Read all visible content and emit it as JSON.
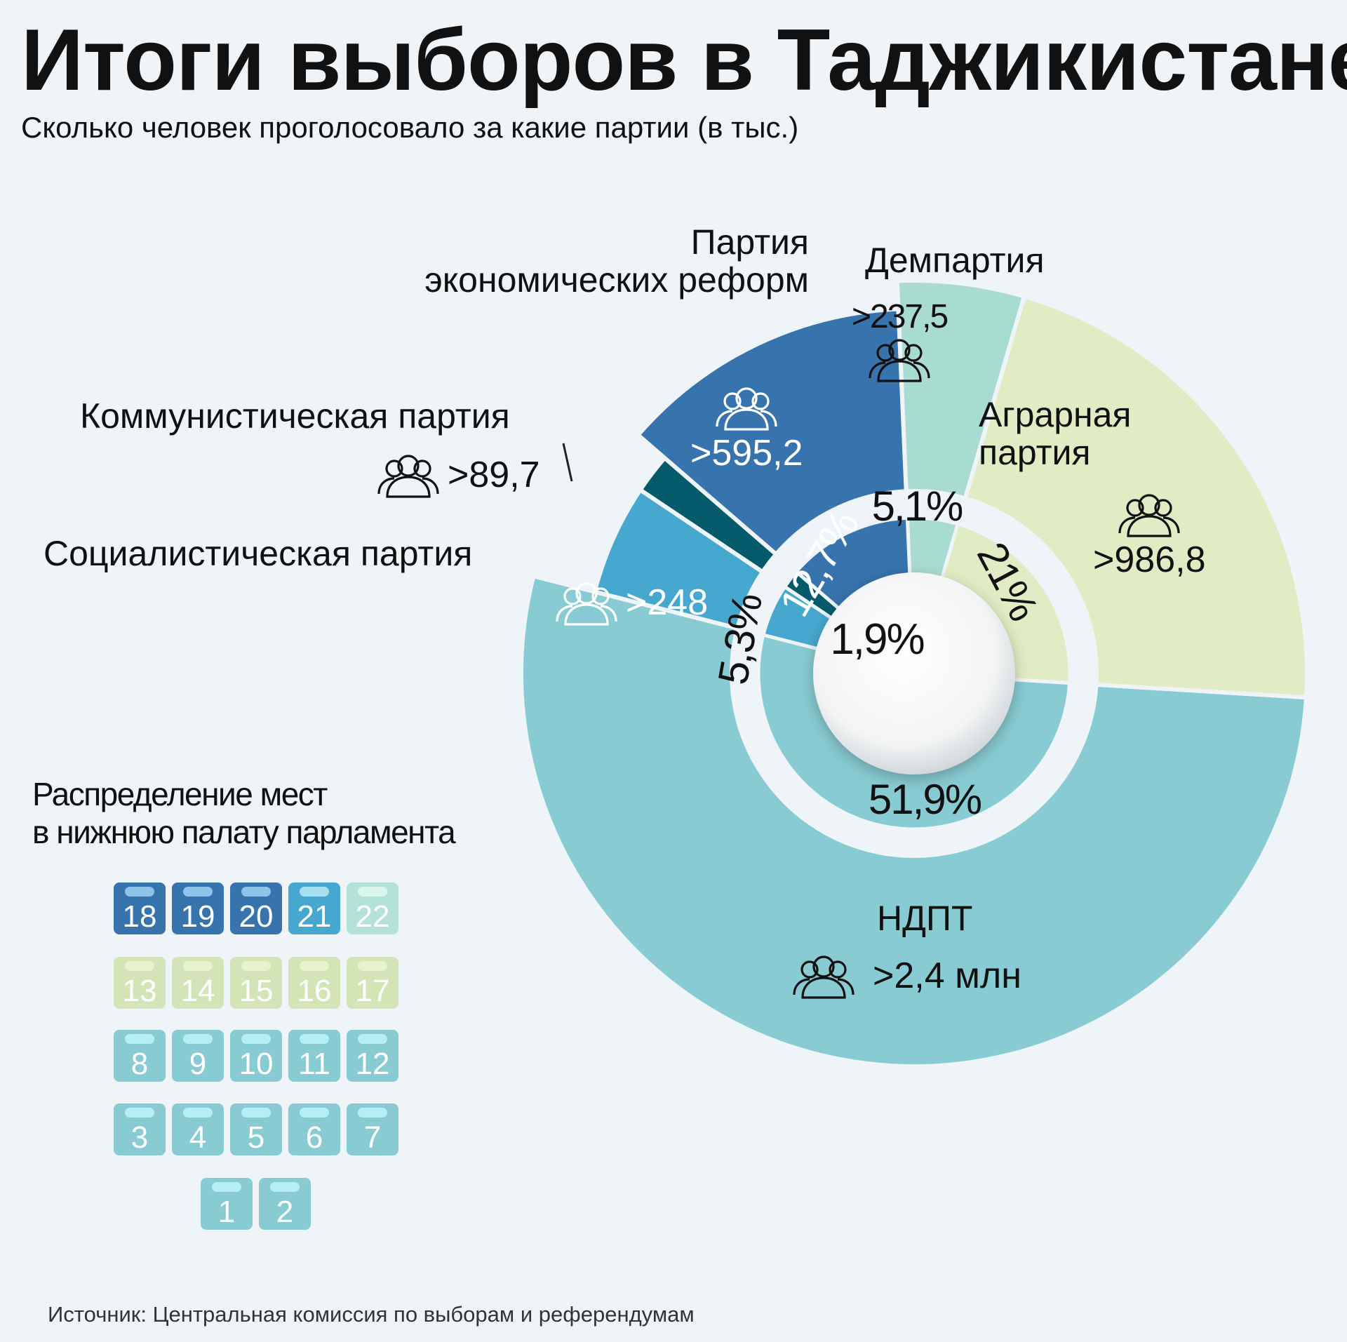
{
  "title": "Итоги выборов в Таджикистане",
  "subtitle": "Сколько человек проголосовало за какие партии (в тыс.)",
  "colors": {
    "ndpt": "#88cbd2",
    "agrarian": "#e1ecc5",
    "dem": "#a9dcd0",
    "economic_reform": "#3773ad",
    "communist": "#045a6a",
    "socialist": "#47a8cf",
    "background": "#eef4f8"
  },
  "chart_data": {
    "type": "pie",
    "series": [
      {
        "name": "НДПТ",
        "votes_label": ">2,4 млн",
        "percent": 51.9,
        "percent_label": "51,9%"
      },
      {
        "name": "Социалистическая партия",
        "votes_label": ">248",
        "percent": 5.3,
        "percent_label": "5,3%"
      },
      {
        "name": "Коммунистическая партия",
        "votes_label": ">89,7",
        "percent": 1.9,
        "percent_label": "1,9%"
      },
      {
        "name": "Партия экономических реформ",
        "votes_label": ">595,2",
        "percent": 12.7,
        "percent_label": "12,7%"
      },
      {
        "name": "Демпартия",
        "votes_label": ">237,5",
        "percent": 5.1,
        "percent_label": "5,1%"
      },
      {
        "name": "Аграрная партия",
        "votes_label": ">986,8",
        "percent": 21,
        "percent_label": "21%"
      }
    ]
  },
  "labels": {
    "ndpt": "НДПТ",
    "socialist": "Социалистическая партия",
    "communist": "Коммунистическая партия",
    "economic_line1": "Партия",
    "economic_line2": "экономических реформ",
    "dem": "Демпартия",
    "agrarian_line1": "Аграрная",
    "agrarian_line2": "партия"
  },
  "seats": {
    "title_line1": "Распределение мест",
    "title_line2": "в нижнюю палату парламента",
    "rows": [
      [
        "18",
        "19",
        "20",
        "21",
        "22"
      ],
      [
        "13",
        "14",
        "15",
        "16",
        "17"
      ],
      [
        "8",
        "9",
        "10",
        "11",
        "12"
      ],
      [
        "3",
        "4",
        "5",
        "6",
        "7"
      ],
      [
        "1",
        "2"
      ]
    ],
    "seat_party": {
      "1": "ndpt",
      "2": "ndpt",
      "3": "ndpt",
      "4": "ndpt",
      "5": "ndpt",
      "6": "ndpt",
      "7": "ndpt",
      "8": "ndpt",
      "9": "ndpt",
      "10": "ndpt",
      "11": "ndpt",
      "12": "ndpt",
      "13": "agrarian",
      "14": "agrarian",
      "15": "agrarian",
      "16": "agrarian",
      "17": "agrarian",
      "18": "economic_reform",
      "19": "economic_reform",
      "20": "economic_reform",
      "21": "socialist",
      "22": "dem"
    }
  },
  "icons": [
    "people-icon"
  ],
  "source": "Источник: Центральная комиссия по выборам и референдумам"
}
